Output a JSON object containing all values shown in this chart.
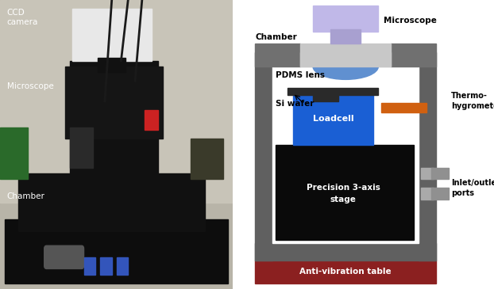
{
  "diagram": {
    "bg_color": "#ffffff",
    "chamber_frame_color": "#606060",
    "chamber_top_light_color": "#c8c8c8",
    "chamber_top_dark_color": "#707070",
    "anti_vib_color": "#8B2020",
    "stage_color": "#0a0a0a",
    "loadcell_color": "#1a5fd4",
    "microscope_body_color": "#c0b8e8",
    "microscope_base_color": "#a8a0d0",
    "pdms_lens_color": "#6090d0",
    "thermo_color": "#d06010",
    "wafer_color": "#2a2a2a",
    "inlet_port_color": "#909090",
    "white": "#ffffff",
    "black": "#000000",
    "labels": {
      "microscope": "Microscope",
      "chamber": "Chamber",
      "pdms_lens": "PDMS lens",
      "si_wafer": "Si wafer",
      "loadcell": "Loadcell",
      "stage": "Precision 3-axis\nstage",
      "thermo": "Thermo-\nhygrometer",
      "anti_vib": "Anti-vibration table",
      "inlet": "Inlet/outlet\nports"
    },
    "photo_labels": {
      "ccd": "CCD\ncamera",
      "microscope": "Microscope",
      "chamber": "Chamber"
    }
  }
}
